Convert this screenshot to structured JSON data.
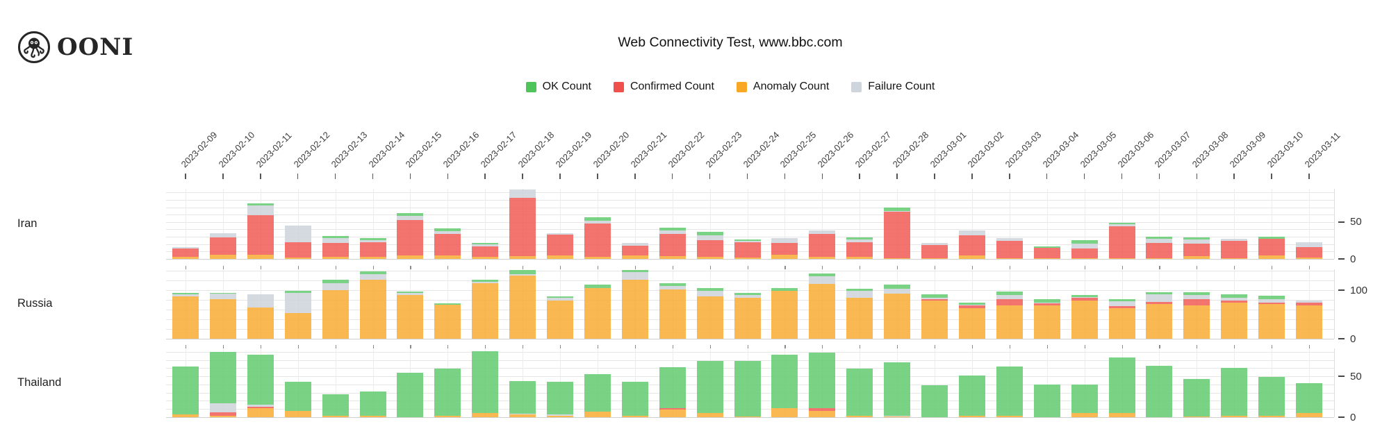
{
  "logo": {
    "text": "OONI"
  },
  "title": "Web Connectivity Test, www.bbc.com",
  "legend": {
    "items": [
      {
        "label": "OK Count",
        "color": "#4EC45A"
      },
      {
        "label": "Confirmed Count",
        "color": "#F0504B"
      },
      {
        "label": "Anomaly Count",
        "color": "#F8A824"
      },
      {
        "label": "Failure Count",
        "color": "#CFD5DC"
      }
    ]
  },
  "chart_data": {
    "type": "bar",
    "stacked": true,
    "title": "Web Connectivity Test, www.bbc.com",
    "legend_position": "top-center",
    "grid": true,
    "x": [
      "2023-02-09",
      "2023-02-10",
      "2023-02-11",
      "2023-02-12",
      "2023-02-13",
      "2023-02-14",
      "2023-02-15",
      "2023-02-16",
      "2023-02-17",
      "2023-02-18",
      "2023-02-19",
      "2023-02-20",
      "2023-02-21",
      "2023-02-22",
      "2023-02-23",
      "2023-02-24",
      "2023-02-25",
      "2023-02-26",
      "2023-02-27",
      "2023-02-28",
      "2023-03-01",
      "2023-03-02",
      "2023-03-03",
      "2023-03-04",
      "2023-03-05",
      "2023-03-06",
      "2023-03-07",
      "2023-03-08",
      "2023-03-09",
      "2023-03-10",
      "2023-03-11"
    ],
    "stack_order_bottom_to_top": [
      "anomaly_count",
      "confirmed_count",
      "failure_count",
      "ok_count"
    ],
    "series_colors": {
      "ok_count": "#63CB70",
      "confirmed_count": "#F15B56",
      "anomaly_count": "#F8AC33",
      "failure_count": "#CED4DC"
    },
    "rows": [
      {
        "country": "Iran",
        "ylim": [
          0,
          95
        ],
        "grid_interval": 10,
        "yticks": [
          {
            "value": 50,
            "label": "50"
          },
          {
            "value": 0,
            "label": "0"
          }
        ],
        "series": {
          "ok_count": [
            0,
            0,
            3,
            0,
            3,
            3,
            4,
            3,
            2,
            0,
            0,
            4,
            0,
            3,
            5,
            2,
            0,
            0,
            3,
            5,
            0,
            0,
            0,
            2,
            4,
            2,
            3,
            3,
            0,
            3,
            0
          ],
          "confirmed_count": [
            11,
            23,
            53,
            21,
            19,
            20,
            48,
            29,
            14,
            79,
            28,
            45,
            13,
            30,
            22,
            21,
            16,
            31,
            20,
            63,
            18,
            27,
            23,
            14,
            13,
            43,
            21,
            17,
            23,
            22,
            14
          ],
          "anomaly_count": [
            3,
            6,
            6,
            2,
            3,
            3,
            5,
            5,
            3,
            4,
            5,
            3,
            5,
            4,
            3,
            2,
            6,
            3,
            3,
            1,
            1,
            5,
            1,
            1,
            1,
            1,
            1,
            4,
            1,
            5,
            2
          ],
          "failure_count": [
            2,
            6,
            13,
            22,
            6,
            2,
            5,
            4,
            3,
            11,
            2,
            4,
            4,
            5,
            7,
            1,
            6,
            5,
            3,
            1,
            3,
            7,
            4,
            0,
            7,
            3,
            5,
            5,
            3,
            0,
            7
          ]
        }
      },
      {
        "country": "Russia",
        "ylim": [
          0,
          143
        ],
        "grid_interval": 20,
        "yticks": [
          {
            "value": 100,
            "label": "100"
          },
          {
            "value": 0,
            "label": "0"
          }
        ],
        "series": {
          "ok_count": [
            3,
            2,
            0,
            3,
            8,
            5,
            3,
            3,
            5,
            8,
            2,
            7,
            5,
            5,
            5,
            4,
            6,
            5,
            5,
            8,
            8,
            5,
            7,
            6,
            4,
            5,
            5,
            6,
            6,
            7,
            0
          ],
          "confirmed_count": [
            0,
            0,
            0,
            0,
            0,
            0,
            0,
            0,
            0,
            0,
            0,
            0,
            0,
            0,
            0,
            0,
            0,
            0,
            0,
            0,
            3,
            6,
            14,
            4,
            6,
            4,
            4,
            14,
            4,
            3,
            6
          ],
          "anomaly_count": [
            87,
            81,
            65,
            53,
            100,
            122,
            90,
            70,
            114,
            130,
            79,
            104,
            121,
            101,
            87,
            85,
            98,
            113,
            85,
            93,
            79,
            63,
            68,
            69,
            79,
            63,
            72,
            68,
            75,
            71,
            68
          ],
          "failure_count": [
            4,
            12,
            27,
            42,
            14,
            11,
            4,
            0,
            3,
            3,
            6,
            0,
            16,
            8,
            12,
            5,
            0,
            16,
            13,
            10,
            2,
            1,
            8,
            2,
            1,
            10,
            15,
            8,
            6,
            7,
            4
          ]
        }
      },
      {
        "country": "Thailand",
        "ylim": [
          0,
          84
        ],
        "grid_interval": 10,
        "yticks": [
          {
            "value": 50,
            "label": "50"
          },
          {
            "value": 0,
            "label": "0"
          }
        ],
        "series": {
          "ok_count": [
            59,
            63,
            61,
            35,
            26,
            29,
            54,
            57,
            76,
            40,
            40,
            46,
            41,
            50,
            64,
            68,
            65,
            68,
            57,
            65,
            39,
            49,
            60,
            40,
            35,
            68,
            63,
            46,
            58,
            47,
            37
          ],
          "confirmed_count": [
            0,
            4,
            2,
            0,
            0,
            0,
            0,
            0,
            0,
            0,
            0,
            0,
            0,
            2,
            0,
            0,
            0,
            3,
            0,
            0,
            0,
            0,
            0,
            0,
            0,
            0,
            0,
            0,
            0,
            0,
            0
          ],
          "anomaly_count": [
            3,
            2,
            11,
            8,
            2,
            2,
            0,
            2,
            5,
            3,
            2,
            7,
            2,
            9,
            5,
            1,
            11,
            8,
            2,
            1,
            0,
            2,
            2,
            0,
            5,
            5,
            0,
            1,
            2,
            2,
            5
          ],
          "failure_count": [
            0,
            11,
            2,
            0,
            0,
            0,
            0,
            0,
            0,
            1,
            1,
            0,
            0,
            0,
            0,
            0,
            0,
            0,
            0,
            1,
            0,
            0,
            0,
            0,
            0,
            0,
            0,
            0,
            0,
            0,
            0
          ]
        }
      }
    ]
  }
}
